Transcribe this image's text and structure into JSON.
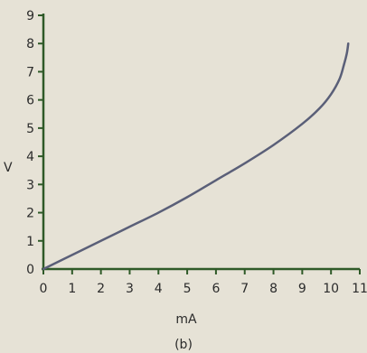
{
  "chart_data": {
    "type": "line",
    "xlabel": "mA",
    "ylabel": "V",
    "caption": "(b)",
    "xlim": [
      0,
      11
    ],
    "ylim": [
      0,
      9
    ],
    "x_ticks": [
      "0",
      "1",
      "2",
      "3",
      "4",
      "5",
      "6",
      "7",
      "8",
      "9",
      "10",
      "11"
    ],
    "y_ticks": [
      "0",
      "1",
      "2",
      "3",
      "4",
      "5",
      "6",
      "7",
      "8",
      "9"
    ],
    "grid": false,
    "colors": {
      "curve": "#5a5f78",
      "axis": "#2f5a28",
      "text": "#2b2b2b"
    },
    "series": [
      {
        "x": [
          0,
          1,
          2,
          3,
          4,
          5,
          6,
          7,
          8,
          9,
          9.6,
          10.0,
          10.3,
          10.45,
          10.55,
          10.6
        ],
        "y": [
          0,
          0.5,
          1.0,
          1.5,
          2.0,
          2.55,
          3.15,
          3.75,
          4.4,
          5.15,
          5.7,
          6.2,
          6.75,
          7.25,
          7.65,
          8.0
        ]
      }
    ]
  }
}
